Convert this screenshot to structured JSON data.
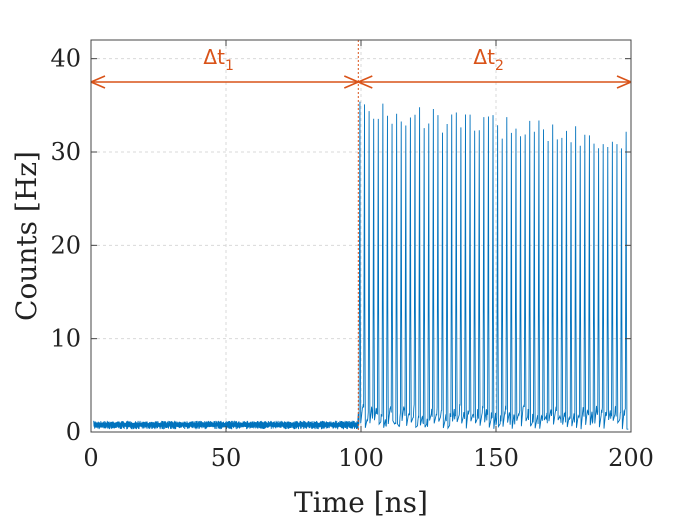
{
  "chart_data": {
    "type": "line",
    "title": "",
    "xlabel": "Time [ns]",
    "ylabel": "Counts [Hz]",
    "xlim": [
      0,
      200
    ],
    "ylim": [
      0,
      42
    ],
    "x_ticks": [
      0,
      50,
      100,
      150,
      200
    ],
    "y_ticks": [
      0,
      10,
      20,
      30,
      40
    ],
    "x_tick_labels": [
      "0",
      "50",
      "100",
      "150",
      "200"
    ],
    "y_tick_labels": [
      "0",
      "10",
      "20",
      "30",
      "40"
    ],
    "grid": true,
    "legend": "none",
    "colors": {
      "series": "#0072BD",
      "annotation": "#D95319",
      "grid": "#d9d9d9",
      "axis": "#444444"
    },
    "series": [
      {
        "segments": [
          {
            "x_range": [
              1,
              99
            ],
            "baseline": 0.3,
            "level": 1.2,
            "description_values": "low-level noise around 1 count"
          },
          {
            "x_range": [
              99,
              199
            ],
            "pulse_period": 1.7,
            "peak_start": 35.5,
            "peak_end": 32.5,
            "baseline": 0.3
          }
        ]
      }
    ],
    "annotations": [
      {
        "symbol": "Δt",
        "subscript": "1",
        "x_start": 0,
        "x_end": 99,
        "y": 37.5
      },
      {
        "symbol": "Δt",
        "subscript": "2",
        "x_start": 99,
        "x_end": 200,
        "y": 37.5
      }
    ],
    "divider_x": 99
  }
}
